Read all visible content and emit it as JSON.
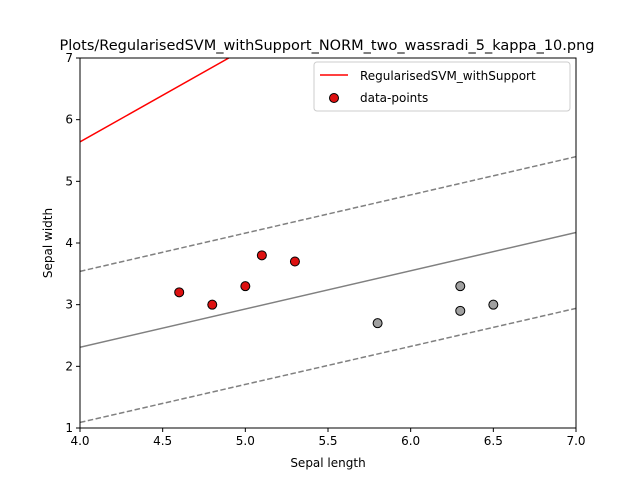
{
  "chart_data": {
    "type": "scatter",
    "title": "Plots/RegularisedSVM_withSupport_NORM_two_wassradi_5_kappa_10.png",
    "xlabel": "Sepal length",
    "ylabel": "Sepal width",
    "xlim": [
      4.0,
      7.0
    ],
    "ylim": [
      1,
      7
    ],
    "xticks": [
      "4.0",
      "4.5",
      "5.0",
      "5.5",
      "6.0",
      "6.5",
      "7.0"
    ],
    "yticks": [
      "1",
      "2",
      "3",
      "4",
      "5",
      "6",
      "7"
    ],
    "grid": false,
    "legend": {
      "placement": "top-right",
      "entries": [
        {
          "label": "RegularisedSVM_withSupport",
          "kind": "line",
          "color": "#ff0000"
        },
        {
          "label": "data-points",
          "kind": "marker",
          "color": "#dd1111"
        }
      ]
    },
    "series": [
      {
        "name": "RegularisedSVM_withSupport",
        "kind": "line",
        "color": "#ff0000",
        "x": [
          4.0,
          4.9
        ],
        "y": [
          5.64,
          7.0
        ]
      },
      {
        "kind": "line",
        "style": "solid",
        "color": "#808080",
        "x": [
          4.0,
          7.0
        ],
        "y": [
          2.31,
          4.17
        ]
      },
      {
        "kind": "line",
        "style": "dashed",
        "color": "#808080",
        "x": [
          4.0,
          7.0
        ],
        "y": [
          3.54,
          5.4
        ]
      },
      {
        "kind": "line",
        "style": "dashed",
        "color": "#808080",
        "x": [
          4.0,
          7.0
        ],
        "y": [
          1.09,
          2.94
        ]
      },
      {
        "name": "data-points",
        "kind": "scatter",
        "points": [
          {
            "x": 4.6,
            "y": 3.2,
            "color": "#dd1111"
          },
          {
            "x": 4.8,
            "y": 3.0,
            "color": "#dd1111"
          },
          {
            "x": 5.0,
            "y": 3.3,
            "color": "#dd1111"
          },
          {
            "x": 5.1,
            "y": 3.8,
            "color": "#dd1111"
          },
          {
            "x": 5.3,
            "y": 3.7,
            "color": "#dd1111"
          },
          {
            "x": 5.8,
            "y": 2.7,
            "color": "#a0a0a0"
          },
          {
            "x": 6.3,
            "y": 3.3,
            "color": "#a0a0a0"
          },
          {
            "x": 6.3,
            "y": 2.9,
            "color": "#a0a0a0"
          },
          {
            "x": 6.5,
            "y": 3.0,
            "color": "#a0a0a0"
          }
        ]
      }
    ]
  }
}
